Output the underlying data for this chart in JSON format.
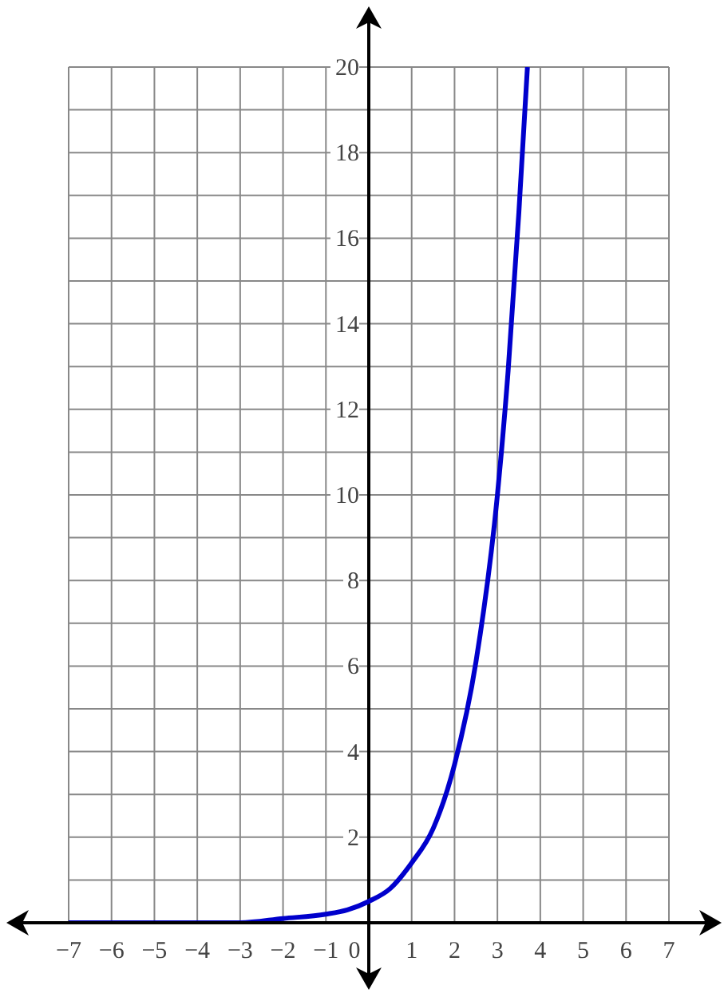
{
  "chart_data": {
    "type": "line",
    "x": [
      -7,
      -6,
      -5,
      -4,
      -3,
      -2,
      -1,
      -0.5,
      0,
      0.5,
      1,
      1.5,
      2,
      2.5,
      3,
      3.25,
      3.5,
      3.7
    ],
    "series": [
      {
        "color": "#0000cc",
        "values": [
          0,
          0,
          0,
          0,
          0,
          0.1,
          0.2,
          0.3,
          0.5,
          0.8,
          1.4,
          2.2,
          3.7,
          6.1,
          10,
          12.9,
          16.6,
          20
        ]
      }
    ],
    "xlim": [
      -7,
      7
    ],
    "xticks": [
      {
        "value": -7,
        "label": "−7"
      },
      {
        "value": -6,
        "label": "−6"
      },
      {
        "value": -5,
        "label": "−5"
      },
      {
        "value": -4,
        "label": "−4"
      },
      {
        "value": -3,
        "label": "−3"
      },
      {
        "value": -2,
        "label": "−2"
      },
      {
        "value": -1,
        "label": "−1"
      },
      0,
      1,
      2,
      3,
      4,
      5,
      6,
      7
    ],
    "ylim": [
      0,
      20
    ],
    "yticks": [
      {
        "value": 1,
        "label": null
      },
      2,
      {
        "value": 3,
        "label": null
      },
      4,
      {
        "value": 5,
        "label": null
      },
      6,
      {
        "value": 7,
        "label": null
      },
      8,
      {
        "value": 9,
        "label": null
      },
      10,
      {
        "value": 11,
        "label": null
      },
      12,
      {
        "value": 13,
        "label": null
      },
      14,
      {
        "value": 15,
        "label": null
      },
      16,
      {
        "value": 17,
        "label": null
      },
      18,
      {
        "value": 19,
        "label": null
      },
      20
    ],
    "grid": true,
    "marker": "none",
    "line_style": "solid"
  }
}
